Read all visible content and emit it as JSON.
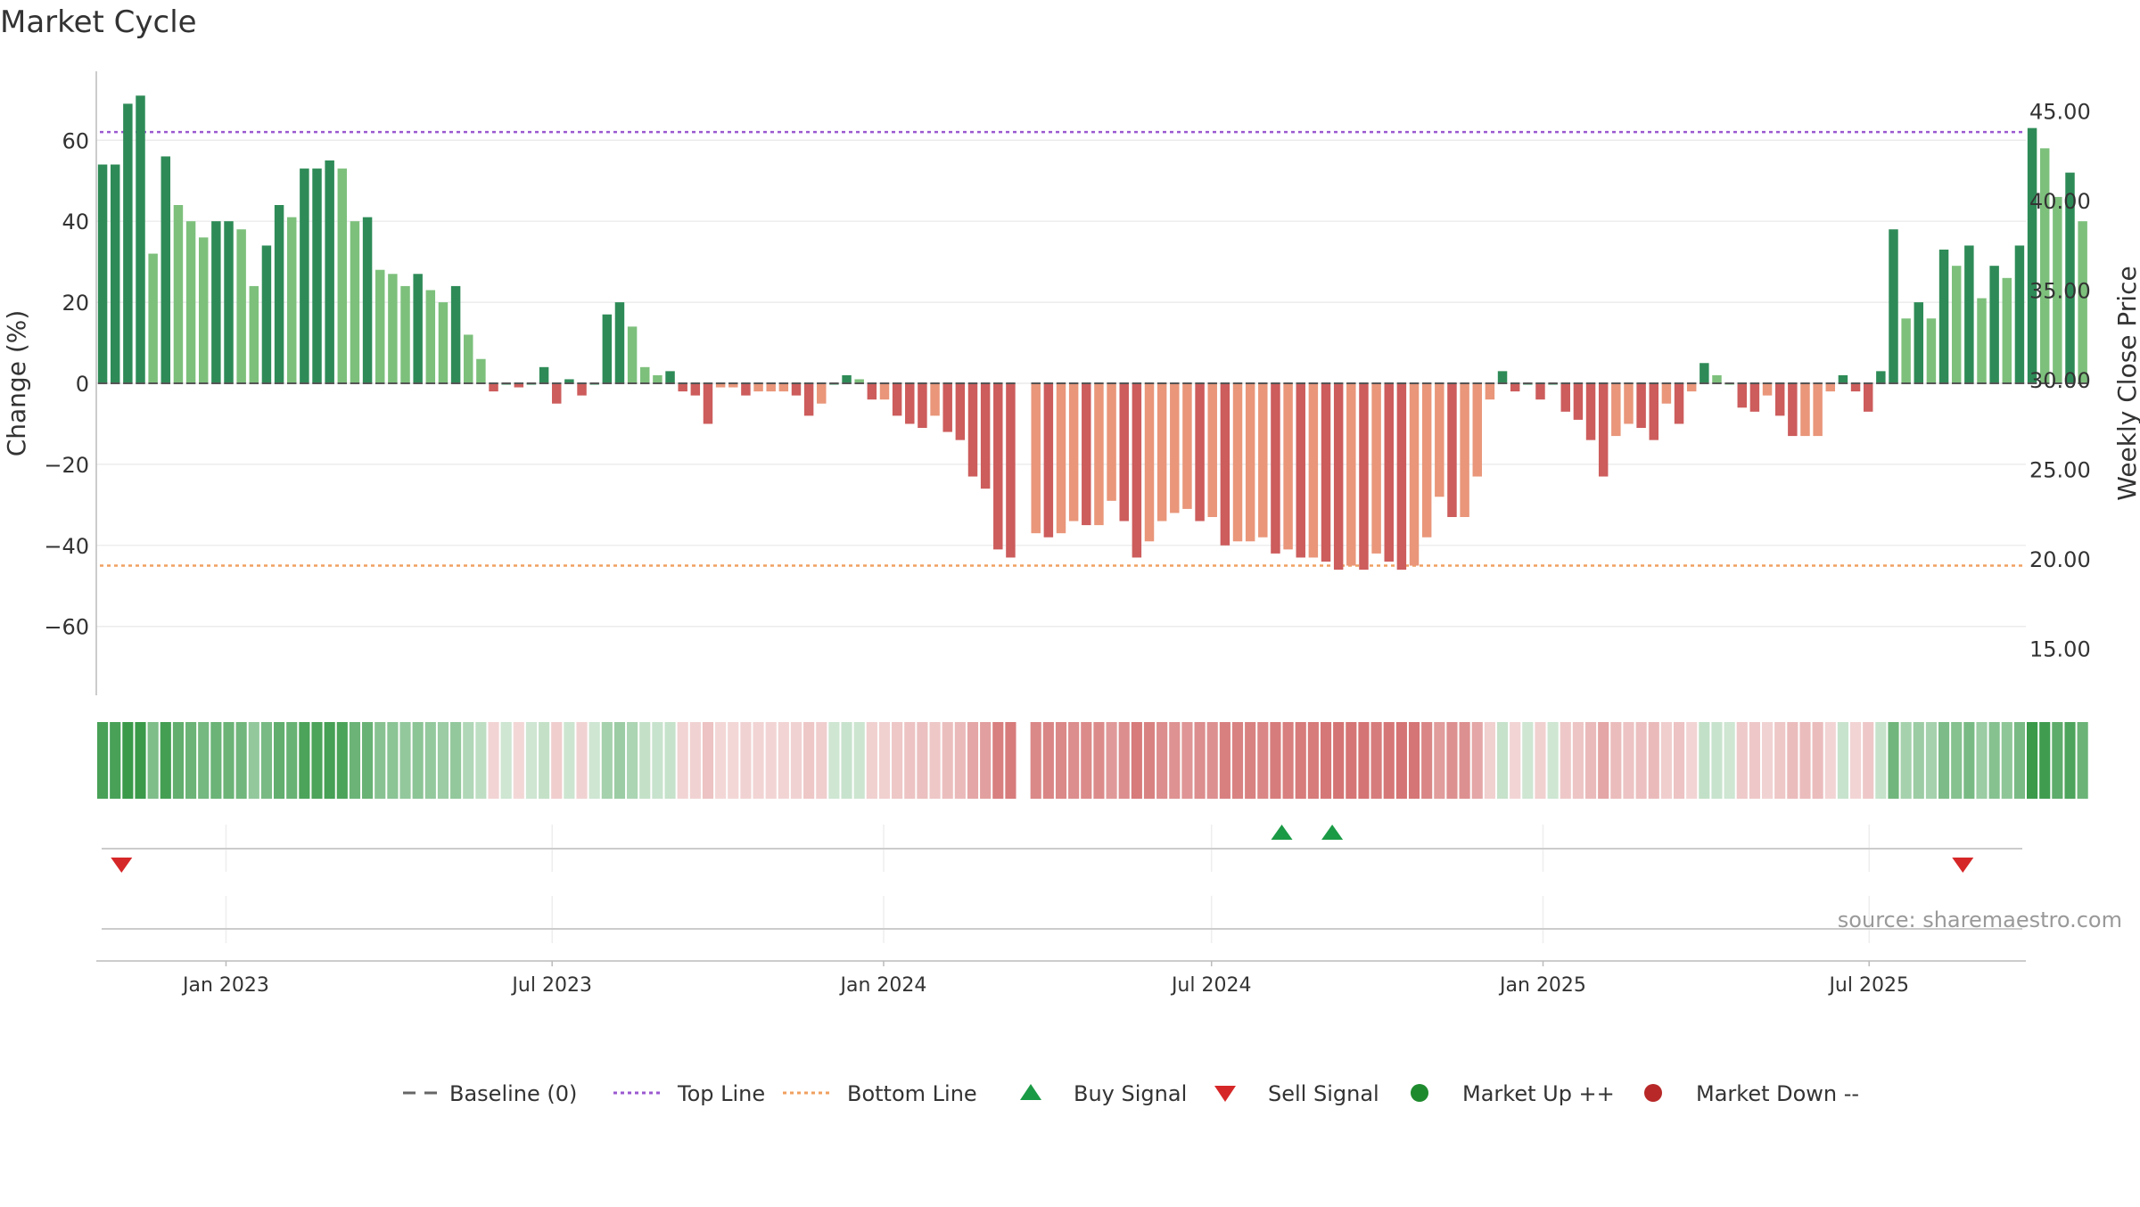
{
  "chart_data": {
    "type": "bar",
    "title": "Market Cycle",
    "ylabel": "Change (%)",
    "y2label": "Weekly Close Price",
    "ylim": [
      -77,
      77
    ],
    "yticks": [
      -60,
      -40,
      -20,
      0,
      20,
      40,
      60
    ],
    "y2lim": [
      12.4,
      47.2
    ],
    "y2ticks": [
      15.0,
      20.0,
      25.0,
      30.0,
      35.0,
      40.0,
      45.0
    ],
    "x_start": "2022-10-21",
    "x_end": "2025-09-26",
    "x_tick_dates": [
      "2023-01-01",
      "2023-07-01",
      "2024-01-01",
      "2024-07-01",
      "2025-01-01",
      "2025-07-01"
    ],
    "x_tick_labels": [
      "Jan 2023",
      "Jul 2023",
      "Jan 2024",
      "Jul 2024",
      "Jan 2025",
      "Jul 2025"
    ],
    "week_start": "2022-10-21",
    "week_interval_days": 7,
    "top_line": 62,
    "bottom_line": -45,
    "values": [
      54,
      54,
      69,
      71,
      32,
      56,
      44,
      40,
      36,
      40,
      40,
      38,
      24,
      34,
      44,
      41,
      53,
      53,
      55,
      53,
      40,
      41,
      28,
      27,
      24,
      27,
      23,
      20,
      24,
      12,
      6,
      -2,
      0,
      -1,
      0,
      4,
      -5,
      1,
      -3,
      0,
      17,
      20,
      14,
      4,
      2,
      3,
      -2,
      -3,
      -10,
      -1,
      -1,
      -3,
      -2,
      -2,
      -2,
      -3,
      -8,
      -5,
      0,
      2,
      1,
      -4,
      -4,
      -8,
      -10,
      -11,
      -8,
      -12,
      -14,
      -23,
      -26,
      -41,
      -43,
      null,
      -37,
      -38,
      -37,
      -34,
      -35,
      -35,
      -29,
      -34,
      -43,
      -39,
      -34,
      -32,
      -31,
      -34,
      -33,
      -40,
      -39,
      -39,
      -38,
      -42,
      -41,
      -43,
      -43,
      -44,
      -46,
      -45,
      -46,
      -42,
      -44,
      -46,
      -45,
      -38,
      -28,
      -33,
      -33,
      -23,
      -4,
      3,
      -2,
      0,
      -4,
      0,
      -7,
      -9,
      -14,
      -23,
      -13,
      -10,
      -11,
      -14,
      -5,
      -10,
      -2,
      5,
      2,
      0,
      -6,
      -7,
      -3,
      -8,
      -13,
      -13,
      -13,
      -2,
      2,
      -2,
      -7,
      3,
      38,
      16,
      20,
      16,
      33,
      29,
      34,
      21,
      29,
      26,
      34,
      63,
      58,
      46,
      52,
      40
    ],
    "buy_signals": [
      "2024-08-09",
      "2024-09-06"
    ],
    "sell_signals": [
      "2022-11-04",
      "2025-08-22"
    ],
    "legend_position": "bottom-center",
    "legend": [
      {
        "label": "Baseline (0)",
        "style": "dashed",
        "color": "#666666"
      },
      {
        "label": "Top Line",
        "style": "dotted",
        "color": "#9b59d0"
      },
      {
        "label": "Bottom Line",
        "style": "dotted",
        "color": "#f0a060"
      },
      {
        "label": "Buy Signal",
        "style": "triangle-up",
        "color": "#1a9a45"
      },
      {
        "label": "Sell Signal",
        "style": "triangle-down",
        "color": "#d62728"
      },
      {
        "label": "Market Up ++",
        "style": "dot",
        "color": "#1e8a2e"
      },
      {
        "label": "Market Down --",
        "style": "dot",
        "color": "#b82828"
      }
    ],
    "source": "source: sharemaestro.com",
    "colors": {
      "up_strong": "#2e8b57",
      "up_light": "#7dc07c",
      "down_strong": "#cd5c5c",
      "down_light": "#e9967a",
      "top_line": "#9b59d0",
      "bottom_line": "#f0a060",
      "grid": "#e8e8e8",
      "axis": "#bbbbbb",
      "text": "#333333"
    }
  }
}
